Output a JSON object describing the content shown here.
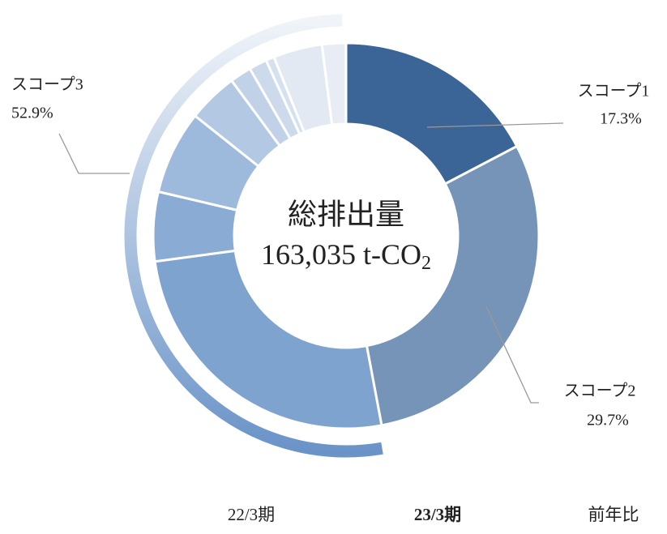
{
  "chart_data": {
    "type": "donut",
    "center_title": "総排出量",
    "center_value": "163,035 t-CO",
    "center_subscript": "2",
    "categories": [
      "スコープ1",
      "スコープ2",
      "スコープ3"
    ],
    "values": [
      17.3,
      29.7,
      52.9
    ],
    "value_labels": [
      "17.3%",
      "29.7%",
      "52.9%"
    ],
    "colors": [
      "#3b6597",
      "#7594b8",
      "#6a93c8"
    ],
    "breakdown": {
      "values": [
        25.8,
        5.8,
        7.0,
        4.2,
        1.8,
        1.5,
        0.7,
        4.1,
        2.0
      ],
      "colors": [
        "#7fa3cf",
        "#8aabd3",
        "#9db9dc",
        "#b3c8e3",
        "#c1d2e8",
        "#ccdaec",
        "#d5e1ef",
        "#e2e9f3",
        "#e8edf5"
      ]
    },
    "periods": [
      "22/3期",
      "23/3期",
      "前年比"
    ]
  }
}
